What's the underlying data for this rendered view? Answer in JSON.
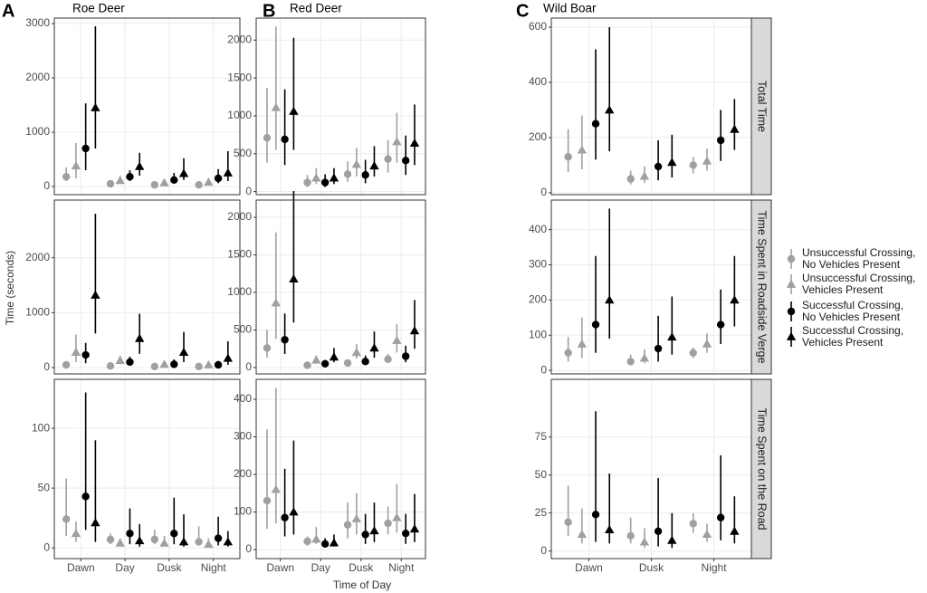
{
  "chart_data": {
    "type": "pointrange",
    "ylabel": "Time (seconds)",
    "xlabel": "Time of Day",
    "grid": true,
    "columns": [
      {
        "label": "A",
        "title": "Roe Deer",
        "categories": [
          "Dawn",
          "Day",
          "Dusk",
          "Night"
        ]
      },
      {
        "label": "B",
        "title": "Red Deer",
        "categories": [
          "Dawn",
          "Day",
          "Dusk",
          "Night"
        ]
      },
      {
        "label": "C",
        "title": "Wild Boar",
        "categories": [
          "Dawn",
          "Dusk",
          "Night"
        ]
      }
    ],
    "rows": [
      {
        "label": "Total Time"
      },
      {
        "label": "Time Spent in Roadside Verge"
      },
      {
        "label": "Time Spent on the Road"
      }
    ],
    "series": [
      {
        "name": "Unsuccessful Crossing, No Vehicles Present",
        "color": "#a0a0a0",
        "marker": "circle"
      },
      {
        "name": "Unsuccessful Crossing, Vehicles Present",
        "color": "#a0a0a0",
        "marker": "triangle"
      },
      {
        "name": "Successful Crossing, No Vehicles Present",
        "color": "#000000",
        "marker": "circle"
      },
      {
        "name": "Successful Crossing, Vehicles Present",
        "color": "#000000",
        "marker": "triangle"
      }
    ],
    "panels": [
      {
        "ylim": [
          -150,
          3100
        ],
        "yticks": [
          0,
          1000,
          2000,
          3000
        ],
        "series": [
          {
            "values": [
              180,
              50,
              30,
              30
            ],
            "lower": [
              100,
              30,
              20,
              20
            ],
            "upper": [
              350,
              80,
              50,
              50
            ]
          },
          {
            "values": [
              380,
              110,
              70,
              80
            ],
            "lower": [
              150,
              60,
              40,
              40
            ],
            "upper": [
              800,
              200,
              130,
              150
            ]
          },
          {
            "values": [
              700,
              180,
              120,
              150
            ],
            "lower": [
              300,
              100,
              60,
              60
            ],
            "upper": [
              1530,
              300,
              250,
              320
            ]
          },
          {
            "values": [
              1450,
              370,
              240,
              250
            ],
            "lower": [
              700,
              200,
              120,
              100
            ],
            "upper": [
              2950,
              620,
              520,
              650
            ]
          }
        ]
      },
      {
        "ylim": [
          -40,
          2290
        ],
        "yticks": [
          0,
          500,
          1000,
          1500,
          2000
        ],
        "series": [
          {
            "values": [
              710,
              120,
              230,
              430
            ],
            "lower": [
              380,
              60,
              130,
              250
            ],
            "upper": [
              1370,
              220,
              400,
              680
            ]
          },
          {
            "values": [
              1110,
              180,
              360,
              660
            ],
            "lower": [
              550,
              100,
              200,
              380
            ],
            "upper": [
              2180,
              310,
              580,
              1040
            ]
          },
          {
            "values": [
              690,
              120,
              220,
              410
            ],
            "lower": [
              350,
              60,
              110,
              220
            ],
            "upper": [
              1350,
              230,
              420,
              740
            ]
          },
          {
            "values": [
              1060,
              180,
              340,
              640
            ],
            "lower": [
              550,
              100,
              200,
              350
            ],
            "upper": [
              2030,
              310,
              600,
              1150
            ]
          }
        ]
      },
      {
        "ylim": [
          -7,
          633
        ],
        "yticks": [
          0,
          200,
          400,
          600
        ],
        "series": [
          {
            "values": [
              130,
              50,
              100
            ],
            "lower": [
              75,
              30,
              70
            ],
            "upper": [
              230,
              80,
              130
            ]
          },
          {
            "values": [
              155,
              60,
              115
            ],
            "lower": [
              85,
              35,
              80
            ],
            "upper": [
              280,
              95,
              160
            ]
          },
          {
            "values": [
              250,
              95,
              190
            ],
            "lower": [
              120,
              45,
              115
            ],
            "upper": [
              520,
              190,
              300
            ]
          },
          {
            "values": [
              300,
              110,
              230
            ],
            "lower": [
              150,
              55,
              155
            ],
            "upper": [
              600,
              210,
              340
            ]
          }
        ]
      },
      {
        "ylim": [
          -115,
          3050
        ],
        "yticks": [
          0,
          1000,
          2000
        ],
        "series": [
          {
            "values": [
              50,
              30,
              20,
              20
            ],
            "lower": [
              30,
              10,
              10,
              10
            ],
            "upper": [
              80,
              50,
              40,
              30
            ]
          },
          {
            "values": [
              280,
              130,
              60,
              50
            ],
            "lower": [
              100,
              60,
              30,
              20
            ],
            "upper": [
              600,
              220,
              110,
              100
            ]
          },
          {
            "values": [
              230,
              100,
              60,
              50
            ],
            "lower": [
              80,
              50,
              20,
              20
            ],
            "upper": [
              450,
              200,
              150,
              120
            ]
          },
          {
            "values": [
              1320,
              530,
              280,
              170
            ],
            "lower": [
              620,
              250,
              100,
              50
            ],
            "upper": [
              2800,
              980,
              650,
              480
            ]
          }
        ]
      },
      {
        "ylim": [
          -85,
          2230
        ],
        "yticks": [
          0,
          500,
          1000,
          1500,
          2000
        ],
        "series": [
          {
            "values": [
              260,
              30,
              60,
              110
            ],
            "lower": [
              130,
              15,
              30,
              60
            ],
            "upper": [
              500,
              50,
              100,
              180
            ]
          },
          {
            "values": [
              860,
              100,
              200,
              360
            ],
            "lower": [
              380,
              50,
              120,
              200
            ],
            "upper": [
              1800,
              160,
              310,
              580
            ]
          },
          {
            "values": [
              370,
              50,
              80,
              150
            ],
            "lower": [
              180,
              20,
              40,
              70
            ],
            "upper": [
              720,
              100,
              160,
              290
            ]
          },
          {
            "values": [
              1180,
              140,
              260,
              490
            ],
            "lower": [
              600,
              70,
              130,
              250
            ],
            "upper": [
              2350,
              260,
              480,
              900
            ]
          }
        ]
      },
      {
        "ylim": [
          -10,
          484
        ],
        "yticks": [
          0,
          100,
          200,
          300,
          400
        ],
        "series": [
          {
            "values": [
              50,
              25,
              50
            ],
            "lower": [
              25,
              15,
              35
            ],
            "upper": [
              95,
              45,
              65
            ]
          },
          {
            "values": [
              75,
              35,
              75
            ],
            "lower": [
              35,
              20,
              50
            ],
            "upper": [
              150,
              60,
              105
            ]
          },
          {
            "values": [
              130,
              62,
              130
            ],
            "lower": [
              50,
              25,
              75
            ],
            "upper": [
              325,
              155,
              230
            ]
          },
          {
            "values": [
              200,
              95,
              200
            ],
            "lower": [
              90,
              45,
              125
            ],
            "upper": [
              460,
              210,
              325
            ]
          }
        ]
      },
      {
        "ylim": [
          -9,
          141
        ],
        "yticks": [
          0,
          50,
          100
        ],
        "series": [
          {
            "values": [
              24,
              7,
              7,
              5
            ],
            "lower": [
              10,
              3,
              3,
              2
            ],
            "upper": [
              58,
              12,
              15,
              18
            ]
          },
          {
            "values": [
              12,
              4,
              4,
              3
            ],
            "lower": [
              5,
              2,
              1,
              1
            ],
            "upper": [
              22,
              8,
              10,
              8
            ]
          },
          {
            "values": [
              43,
              12,
              12,
              8
            ],
            "lower": [
              15,
              3,
              3,
              2
            ],
            "upper": [
              130,
              33,
              42,
              26
            ]
          },
          {
            "values": [
              21,
              6,
              5,
              5
            ],
            "lower": [
              5,
              1,
              1,
              1
            ],
            "upper": [
              90,
              20,
              28,
              14
            ]
          }
        ]
      },
      {
        "ylim": [
          -24,
          453
        ],
        "yticks": [
          0,
          100,
          200,
          300,
          400
        ],
        "series": [
          {
            "values": [
              130,
              22,
              66,
              70
            ],
            "lower": [
              55,
              10,
              30,
              40
            ],
            "upper": [
              320,
              35,
              125,
              115
            ]
          },
          {
            "values": [
              160,
              28,
              82,
              85
            ],
            "lower": [
              70,
              15,
              40,
              45
            ],
            "upper": [
              430,
              60,
              150,
              175
            ]
          },
          {
            "values": [
              85,
              15,
              40,
              43
            ],
            "lower": [
              35,
              6,
              15,
              15
            ],
            "upper": [
              215,
              30,
              95,
              95
            ]
          },
          {
            "values": [
              100,
              18,
              50,
              55
            ],
            "lower": [
              40,
              8,
              20,
              20
            ],
            "upper": [
              290,
              40,
              125,
              148
            ]
          }
        ]
      },
      {
        "ylim": [
          -5,
          113
        ],
        "yticks": [
          0,
          25,
          50,
          75
        ],
        "series": [
          {
            "values": [
              19,
              10,
              18
            ],
            "lower": [
              10,
              5,
              12
            ],
            "upper": [
              43,
              22,
              25
            ]
          },
          {
            "values": [
              11,
              6,
              11
            ],
            "lower": [
              5,
              2,
              6
            ],
            "upper": [
              28,
              15,
              18
            ]
          },
          {
            "values": [
              24,
              13,
              22
            ],
            "lower": [
              6,
              3,
              7
            ],
            "upper": [
              92,
              48,
              63
            ]
          },
          {
            "values": [
              14,
              7,
              13
            ],
            "lower": [
              5,
              2,
              5
            ],
            "upper": [
              51,
              25,
              36
            ]
          }
        ]
      }
    ]
  }
}
